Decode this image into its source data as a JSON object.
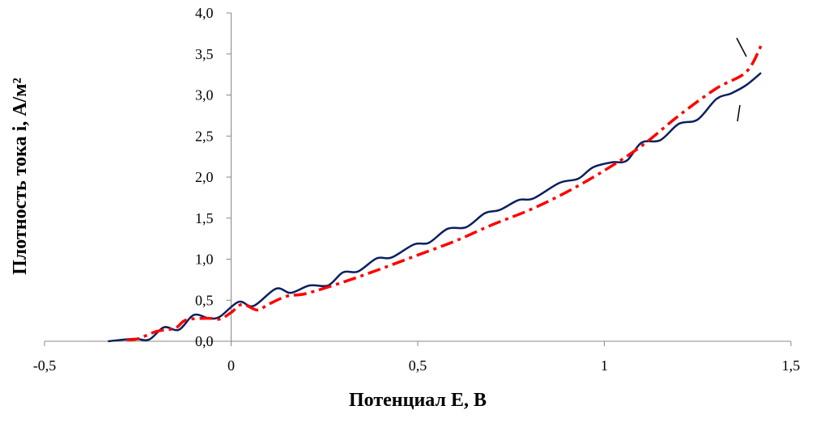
{
  "chart_data": {
    "type": "line",
    "xlabel": "Потенциал Е, В",
    "ylabel": "Плотность тока i, А/м²",
    "xlim": [
      -0.5,
      1.5
    ],
    "xticks": [
      {
        "value": -0.5,
        "label": "-0,5"
      },
      0,
      {
        "value": 0.5,
        "label": "0,5"
      },
      1,
      {
        "value": 1.5,
        "label": "1,5"
      }
    ],
    "ylim": [
      0,
      4
    ],
    "yticks": [
      {
        "value": 0,
        "label": "0,0"
      },
      {
        "value": 0.5,
        "label": "0,5"
      },
      {
        "value": 1,
        "label": "1,0"
      },
      {
        "value": 1.5,
        "label": "1,5"
      },
      {
        "value": 2,
        "label": "2,0"
      },
      {
        "value": 2.5,
        "label": "2,5"
      },
      {
        "value": 3,
        "label": "3,0"
      },
      {
        "value": 3.5,
        "label": "3,5"
      },
      {
        "value": 4,
        "label": "4,0"
      }
    ],
    "series": [
      {
        "color": "#0b1f5c",
        "style": "solid",
        "x": [
          -0.33,
          -0.26,
          -0.22,
          -0.18,
          -0.14,
          -0.1,
          -0.06,
          -0.03,
          0.02,
          0.06,
          0.12,
          0.16,
          0.21,
          0.26,
          0.3,
          0.34,
          0.39,
          0.43,
          0.49,
          0.53,
          0.58,
          0.63,
          0.68,
          0.72,
          0.77,
          0.81,
          0.88,
          0.93,
          0.97,
          1.02,
          1.06,
          1.1,
          1.15,
          1.2,
          1.25,
          1.3,
          1.34,
          1.38,
          1.42
        ],
        "values": [
          0,
          0.03,
          0.02,
          0.17,
          0.14,
          0.32,
          0.28,
          0.3,
          0.48,
          0.43,
          0.64,
          0.59,
          0.68,
          0.68,
          0.84,
          0.85,
          1.01,
          1.02,
          1.18,
          1.2,
          1.37,
          1.39,
          1.56,
          1.6,
          1.72,
          1.74,
          1.93,
          1.98,
          2.12,
          2.18,
          2.2,
          2.42,
          2.45,
          2.65,
          2.7,
          2.95,
          3.02,
          3.12,
          3.27
        ]
      },
      {
        "color": "#ff0000",
        "style": "dashdot",
        "x": [
          -0.28,
          -0.25,
          -0.2,
          -0.15,
          -0.12,
          -0.06,
          -0.03,
          0,
          0.03,
          0.07,
          0.1,
          0.15,
          0.2,
          0.3,
          0.4,
          0.5,
          0.6,
          0.7,
          0.8,
          0.9,
          1.0,
          1.1,
          1.2,
          1.3,
          1.38,
          1.42
        ],
        "values": [
          0.02,
          0.03,
          0.12,
          0.16,
          0.26,
          0.28,
          0.27,
          0.35,
          0.45,
          0.38,
          0.45,
          0.55,
          0.58,
          0.72,
          0.88,
          1.05,
          1.22,
          1.42,
          1.6,
          1.82,
          2.08,
          2.38,
          2.75,
          3.08,
          3.28,
          3.6
        ]
      }
    ]
  }
}
